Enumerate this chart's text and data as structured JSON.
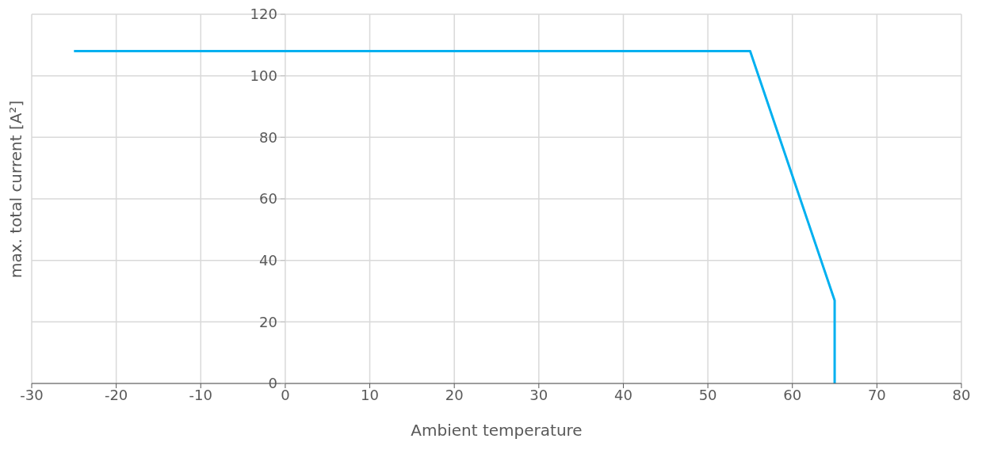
{
  "chart_data": {
    "type": "line",
    "xlabel": "Ambient temperature",
    "ylabel": "max. total current [A²]",
    "x": [
      -25,
      55,
      65,
      65
    ],
    "series": [
      {
        "color": "#00b0f0",
        "values": [
          108,
          108,
          27,
          0
        ]
      }
    ],
    "xlim": [
      -30,
      80
    ],
    "xticks": [
      -30,
      -20,
      -10,
      0,
      10,
      20,
      30,
      40,
      50,
      60,
      70,
      80
    ],
    "ylim": [
      0,
      120
    ],
    "yticks": [
      0,
      20,
      40,
      60,
      80,
      100,
      120
    ],
    "grid": true,
    "marker": "none",
    "line_style": "solid"
  }
}
